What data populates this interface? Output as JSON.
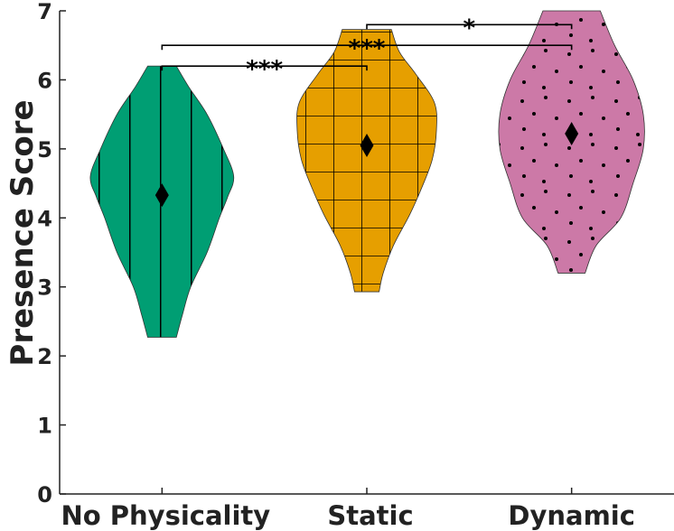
{
  "chart_data": {
    "type": "violin",
    "title": "",
    "xlabel": "",
    "ylabel": "Presence Score",
    "ylim": [
      0,
      7
    ],
    "xlim": [
      0.5,
      3.5
    ],
    "yticks": [
      0,
      1,
      2,
      3,
      4,
      5,
      6,
      7
    ],
    "grid": false,
    "categories": [
      "No Physicality",
      "Static",
      "Dynamic"
    ],
    "series": [
      {
        "category": "No Physicality",
        "color": "#009E73",
        "pattern": "vertical-lines",
        "mean": 4.33,
        "min": 2.27,
        "max": 6.2,
        "density_profile": [
          [
            2.27,
            0.07
          ],
          [
            2.6,
            0.1
          ],
          [
            3.0,
            0.14
          ],
          [
            3.5,
            0.22
          ],
          [
            4.0,
            0.28
          ],
          [
            4.3,
            0.32
          ],
          [
            4.6,
            0.35
          ],
          [
            5.0,
            0.3
          ],
          [
            5.5,
            0.22
          ],
          [
            5.9,
            0.13
          ],
          [
            6.2,
            0.07
          ]
        ]
      },
      {
        "category": "Static",
        "color": "#E69F00",
        "pattern": "grid",
        "mean": 5.05,
        "min": 2.93,
        "max": 6.73,
        "density_profile": [
          [
            2.93,
            0.06
          ],
          [
            3.2,
            0.08
          ],
          [
            3.6,
            0.13
          ],
          [
            4.05,
            0.21
          ],
          [
            4.45,
            0.27
          ],
          [
            4.85,
            0.32
          ],
          [
            5.27,
            0.34
          ],
          [
            5.67,
            0.33
          ],
          [
            6.08,
            0.24
          ],
          [
            6.4,
            0.16
          ],
          [
            6.73,
            0.12
          ]
        ]
      },
      {
        "category": "Dynamic",
        "color": "#CC79A7",
        "pattern": "dots",
        "mean": 5.22,
        "min": 3.2,
        "max": 7.0,
        "density_profile": [
          [
            3.2,
            0.066
          ],
          [
            3.6,
            0.12
          ],
          [
            4.0,
            0.24
          ],
          [
            4.5,
            0.3
          ],
          [
            5.0,
            0.35
          ],
          [
            5.5,
            0.35
          ],
          [
            6.0,
            0.3
          ],
          [
            6.5,
            0.21
          ],
          [
            7.0,
            0.14
          ]
        ]
      }
    ],
    "significance": [
      {
        "from": "No Physicality",
        "to": "Static",
        "y": 6.2,
        "label": "***"
      },
      {
        "from": "No Physicality",
        "to": "Dynamic",
        "y": 6.5,
        "label": "***"
      },
      {
        "from": "Static",
        "to": "Dynamic",
        "y": 6.8,
        "label": "*"
      }
    ]
  }
}
